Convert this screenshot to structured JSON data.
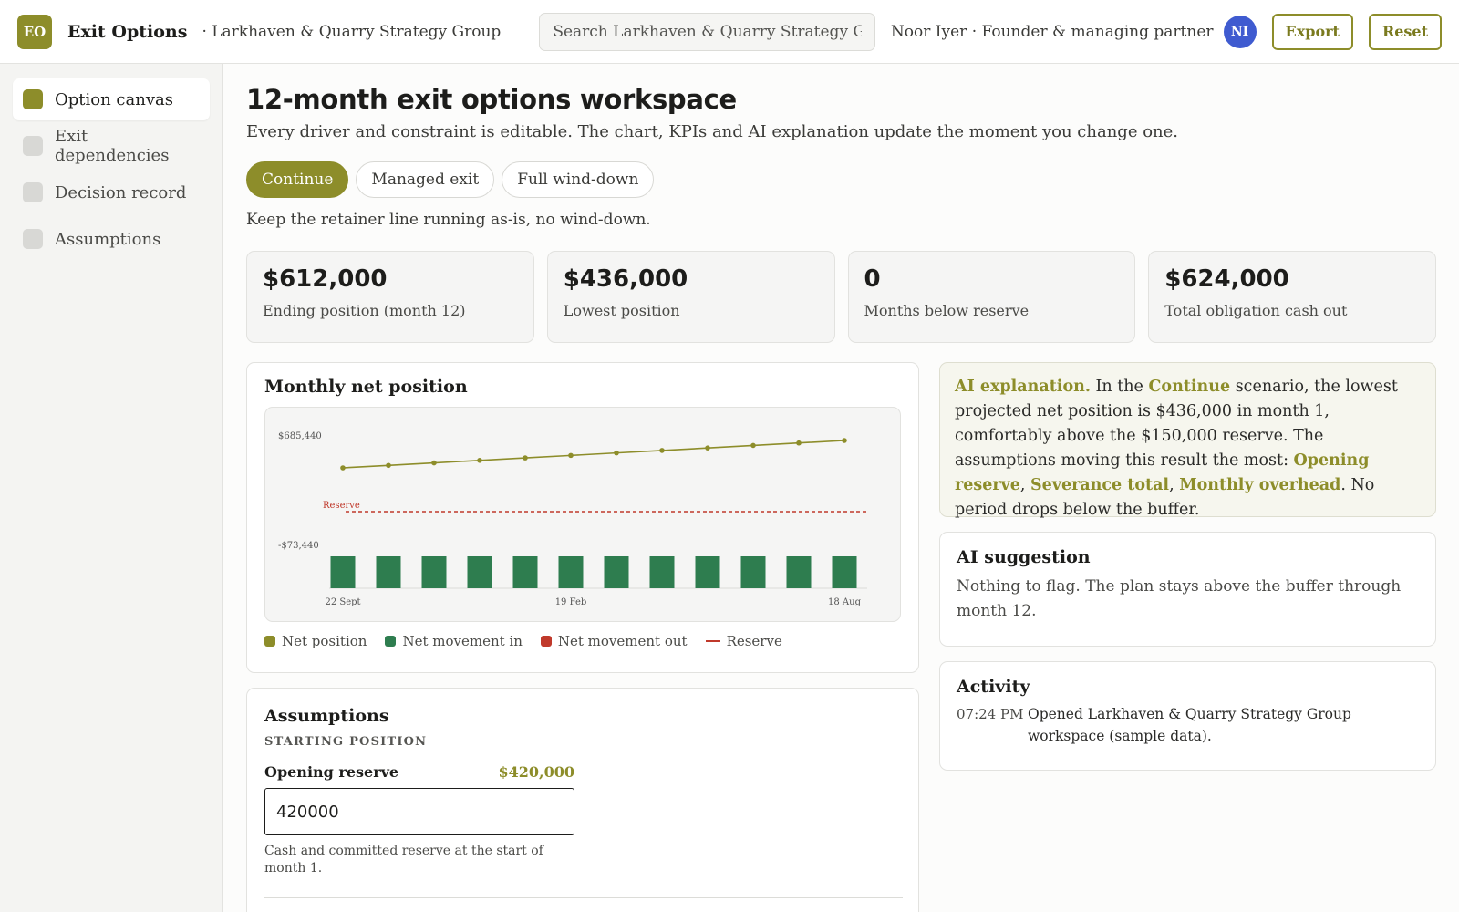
{
  "header": {
    "logo_text": "EO",
    "app_title": "Exit Options",
    "org": "· Larkhaven & Quarry Strategy Group",
    "search_placeholder": "Search Larkhaven & Quarry Strategy Group...",
    "user": "Noor Iyer · Founder & managing partner",
    "avatar_initials": "NI",
    "export_label": "Export",
    "reset_label": "Reset"
  },
  "sidebar": {
    "items": [
      {
        "label": "Option canvas",
        "active": true
      },
      {
        "label": "Exit dependencies",
        "active": false
      },
      {
        "label": "Decision record",
        "active": false
      },
      {
        "label": "Assumptions",
        "active": false
      }
    ]
  },
  "main": {
    "title": "12-month exit options workspace",
    "subtitle": "Every driver and constraint is editable. The chart, KPIs and AI explanation update the moment you change one.",
    "scenarios": [
      "Continue",
      "Managed exit",
      "Full wind-down"
    ],
    "active_scenario": "Continue",
    "scenario_desc": "Keep the retainer line running as-is, no wind-down.",
    "kpis": [
      {
        "value": "$612,000",
        "label": "Ending position (month 12)"
      },
      {
        "value": "$436,000",
        "label": "Lowest position"
      },
      {
        "value": "0",
        "label": "Months below reserve"
      },
      {
        "value": "$624,000",
        "label": "Total obligation cash out"
      }
    ]
  },
  "chart": {
    "title": "Monthly net position",
    "legend": [
      "Net position",
      "Net movement in",
      "Net movement out",
      "Reserve"
    ],
    "reserve_label": "Reserve"
  },
  "chart_data": {
    "type": "line",
    "y_tick_labels": [
      "$685,440",
      "-$73,440"
    ],
    "x_tick_labels": [
      "22 Sept",
      "19 Feb",
      "18 Aug"
    ],
    "ylim": [
      -73440,
      685440
    ],
    "reserve": 150000,
    "series": [
      {
        "name": "Net position",
        "type": "line",
        "values": [
          436000,
          452000,
          468000,
          484000,
          500000,
          516000,
          532000,
          548000,
          564000,
          580000,
          596000,
          612000
        ]
      },
      {
        "name": "Net movement in",
        "type": "bar",
        "values": [
          16000,
          16000,
          16000,
          16000,
          16000,
          16000,
          16000,
          16000,
          16000,
          16000,
          16000,
          16000
        ]
      },
      {
        "name": "Net movement out",
        "type": "bar",
        "values": [
          0,
          0,
          0,
          0,
          0,
          0,
          0,
          0,
          0,
          0,
          0,
          0
        ]
      }
    ],
    "colors": {
      "line": "#8d8d2a",
      "in": "#2e7d4f",
      "out": "#c0392b",
      "reserve": "#c0392b"
    }
  },
  "assumptions": {
    "title": "Assumptions",
    "section": "STARTING POSITION",
    "field_name": "Opening reserve",
    "field_display": "$420,000",
    "field_value": "420000",
    "field_help": "Cash and committed reserve at the start of month 1."
  },
  "ai_explanation": {
    "label": "AI explanation.",
    "t1": " In the ",
    "scenario": "Continue",
    "t2": " scenario, the lowest projected net position is $436,000 in month 1, comfortably above the $150,000 reserve. The assumptions moving this result the most: ",
    "h1": "Opening reserve",
    "sep1": ", ",
    "h2": "Severance total",
    "sep2": ", ",
    "h3": "Monthly overhead",
    "t3": ". No period drops below the buffer."
  },
  "ai_suggestion": {
    "title": "AI suggestion",
    "text": "Nothing to flag. The plan stays above the buffer through month 12."
  },
  "activity": {
    "title": "Activity",
    "items": [
      {
        "time": "07:24 PM",
        "text": "Opened Larkhaven & Quarry Strategy Group workspace (sample data)."
      }
    ]
  }
}
